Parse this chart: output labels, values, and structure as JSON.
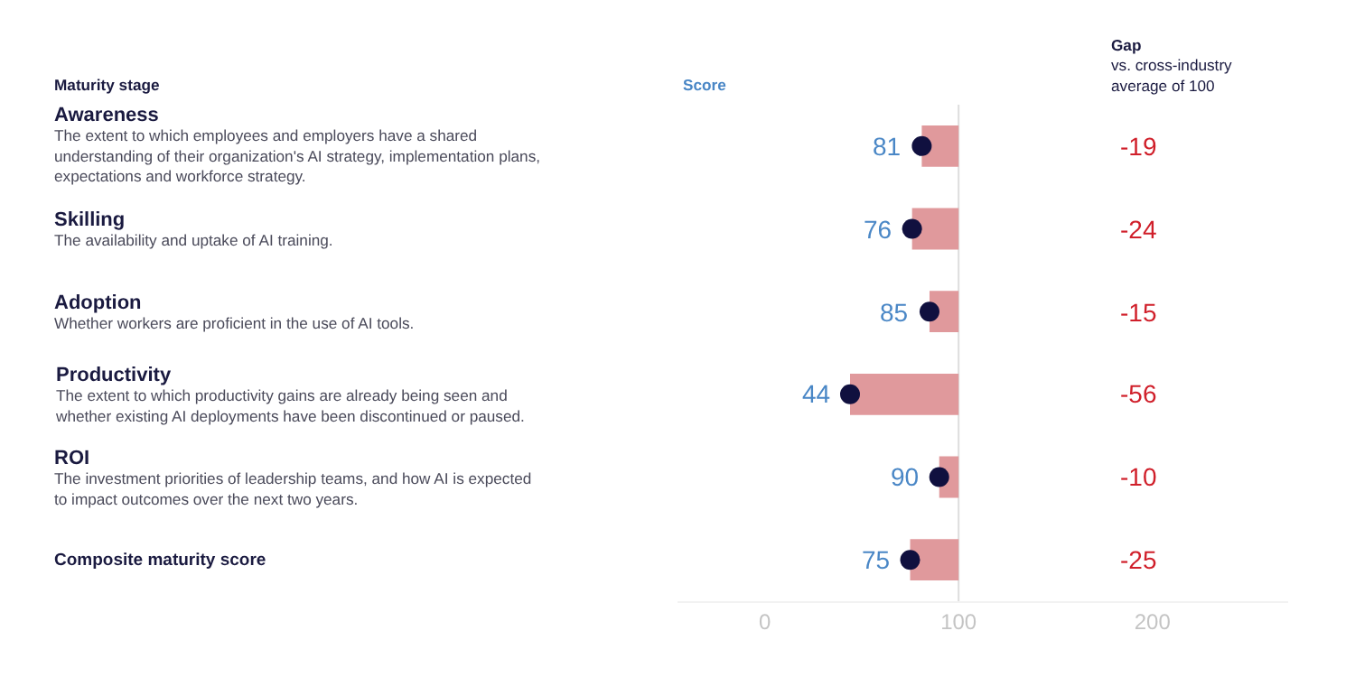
{
  "chart_data": {
    "type": "bar",
    "orientation": "horizontal",
    "categories": [
      "Awareness\nThe extent to which employees and employers have a shared\nunderstanding of their organization's AI strategy, implementation plans,\nexpectations and workforce strategy.",
      "Skilling\nThe availability and uptake of AI training.",
      "Adoption\nWhether workers are proficient in the use of AI tools.",
      "Productivity\nThe extent to which productivity gains are already being seen and\nwhether existing AI deployments have been discontinued or paused.",
      "ROI\nThe investment priorities of leadership teams, and how AI is expected\nto impact outcomes over the next two years.",
      "Composite maturity score"
    ],
    "series": [
      {
        "color": "#e0999c",
        "base": [
          100,
          100,
          100,
          100,
          100,
          100
        ],
        "values": [
          -19,
          -24,
          -15,
          -56,
          -10,
          -25
        ],
        "value_labels": [
          "-19",
          "-24",
          "-15",
          "-56",
          "-10",
          "-25"
        ]
      },
      {
        "type": "scatter",
        "color": "#10103f",
        "values": [
          81,
          76,
          85,
          44,
          90,
          75
        ],
        "value_labels": [
          "81",
          "76",
          "85",
          "44",
          "90",
          "75"
        ]
      }
    ],
    "xlim": [
      -45,
      270
    ],
    "xticks": [
      0,
      100,
      200
    ],
    "ref_lines": [
      {
        "axis": "x",
        "value": 100,
        "color": "#dddddd"
      }
    ],
    "grid": false,
    "legend": false,
    "marker": "circle",
    "tick_labels": "x",
    "annotations": [
      "Maturity stage",
      "Score",
      "Gap\nvs. cross-industry\naverage of 100"
    ]
  }
}
